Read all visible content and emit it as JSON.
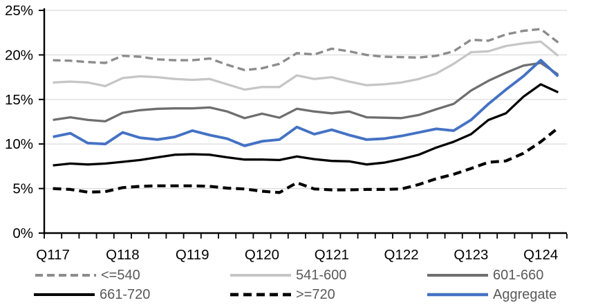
{
  "chart_data": {
    "type": "line",
    "title": "",
    "xlabel": "",
    "ylabel": "",
    "ylim": [
      0,
      25
    ],
    "y_tick_values": [
      0,
      5,
      10,
      15,
      20,
      25
    ],
    "y_tick_labels": [
      "0%",
      "5%",
      "10%",
      "15%",
      "20%",
      "25%"
    ],
    "grid": true,
    "gridline_color": "#d9d9d9",
    "axis_color": "#000000",
    "legend_position": "bottom",
    "x_label_every": 4,
    "x_tick_labels_shown": [
      "Q117",
      "Q118",
      "Q119",
      "Q120",
      "Q121",
      "Q122",
      "Q123",
      "Q124"
    ],
    "categories": [
      "Q117",
      "Q217",
      "Q317",
      "Q417",
      "Q118",
      "Q218",
      "Q318",
      "Q418",
      "Q119",
      "Q219",
      "Q319",
      "Q419",
      "Q120",
      "Q220",
      "Q320",
      "Q420",
      "Q121",
      "Q221",
      "Q321",
      "Q421",
      "Q122",
      "Q222",
      "Q322",
      "Q422",
      "Q123",
      "Q223",
      "Q323",
      "Q423",
      "Q124",
      "Q224"
    ],
    "series": [
      {
        "name": "<=540",
        "color": "#8c8c8c",
        "style": "dashed",
        "width": 3.4,
        "dash": "11 6",
        "values": [
          19.4,
          19.35,
          19.2,
          19.1,
          19.9,
          19.8,
          19.5,
          19.4,
          19.4,
          19.6,
          18.9,
          18.3,
          18.5,
          19.0,
          20.2,
          20.05,
          20.7,
          20.4,
          20.0,
          19.8,
          19.75,
          19.7,
          19.9,
          20.4,
          21.7,
          21.6,
          22.3,
          22.7,
          22.9,
          21.4
        ]
      },
      {
        "name": "541-600",
        "color": "#c6c6c6",
        "style": "solid",
        "width": 3.3,
        "dash": "",
        "values": [
          16.9,
          17.0,
          16.9,
          16.5,
          17.4,
          17.6,
          17.5,
          17.3,
          17.2,
          17.3,
          16.7,
          16.1,
          16.4,
          16.4,
          17.7,
          17.3,
          17.5,
          17.0,
          16.6,
          16.7,
          16.9,
          17.3,
          17.9,
          19.0,
          20.3,
          20.4,
          21.0,
          21.3,
          21.5,
          19.9
        ]
      },
      {
        "name": "601-660",
        "color": "#6e6e6e",
        "style": "solid",
        "width": 3.3,
        "dash": "",
        "values": [
          12.7,
          13.0,
          12.7,
          12.55,
          13.5,
          13.8,
          13.95,
          14.0,
          14.0,
          14.1,
          13.65,
          12.9,
          13.4,
          12.95,
          13.95,
          13.65,
          13.45,
          13.65,
          13.0,
          12.95,
          12.9,
          13.25,
          13.9,
          14.5,
          16.0,
          17.1,
          18.0,
          18.8,
          19.1,
          17.8
        ]
      },
      {
        "name": "661-720",
        "color": "#000000",
        "style": "solid",
        "width": 3.3,
        "dash": "",
        "values": [
          7.6,
          7.8,
          7.7,
          7.8,
          8.0,
          8.2,
          8.5,
          8.8,
          8.85,
          8.8,
          8.5,
          8.25,
          8.25,
          8.2,
          8.6,
          8.3,
          8.1,
          8.05,
          7.7,
          7.9,
          8.3,
          8.8,
          9.6,
          10.25,
          11.1,
          12.7,
          13.45,
          15.3,
          16.7,
          15.8
        ]
      },
      {
        "name": ">=720",
        "color": "#000000",
        "style": "dashed",
        "width": 4.2,
        "dash": "12 7",
        "values": [
          5.0,
          4.9,
          4.6,
          4.65,
          5.1,
          5.25,
          5.3,
          5.3,
          5.3,
          5.25,
          5.05,
          4.95,
          4.7,
          4.55,
          5.65,
          4.95,
          4.85,
          4.85,
          4.9,
          4.9,
          4.95,
          5.45,
          6.1,
          6.6,
          7.25,
          7.95,
          8.1,
          8.95,
          10.25,
          11.8
        ]
      },
      {
        "name": "Aggregate",
        "color": "#4472c4",
        "style": "solid",
        "width": 3.9,
        "dash": "",
        "values": [
          10.8,
          11.2,
          10.1,
          10.0,
          11.3,
          10.7,
          10.5,
          10.8,
          11.5,
          11.0,
          10.6,
          9.8,
          10.3,
          10.5,
          11.9,
          11.1,
          11.6,
          11.0,
          10.5,
          10.6,
          10.9,
          11.3,
          11.7,
          11.5,
          12.7,
          14.5,
          16.1,
          17.6,
          19.4,
          17.6
        ]
      }
    ]
  }
}
